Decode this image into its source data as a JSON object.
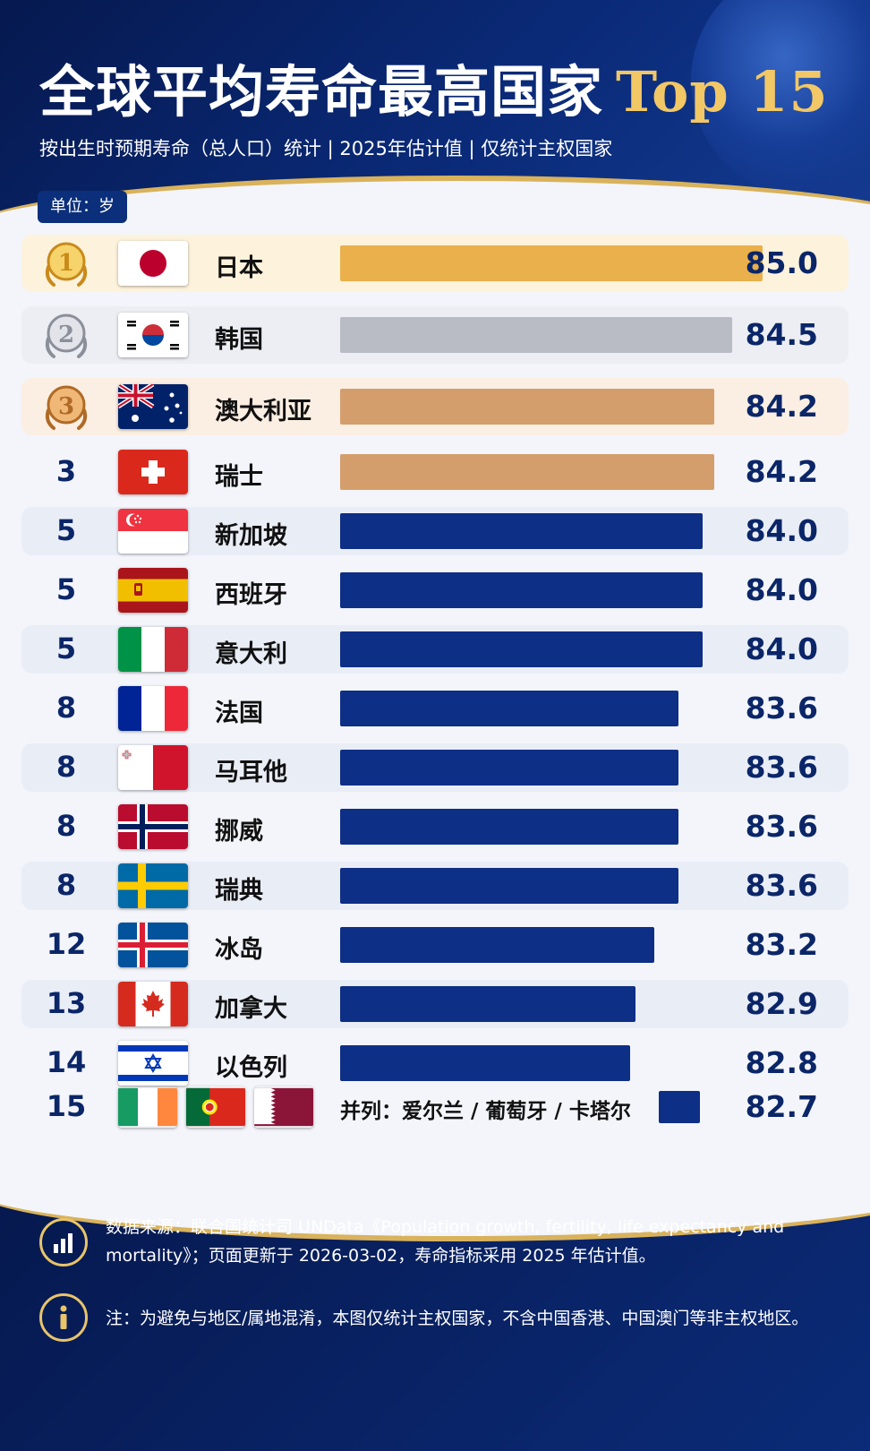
{
  "header": {
    "title": "全球平均寿命最高国家",
    "title_highlight": "Top 15",
    "subtitle": "按出生时预期寿命（总人口）统计 | 2025年估计值 | 仅统计主权国家"
  },
  "unit_label": "单位：岁",
  "chart_data": {
    "type": "bar",
    "orientation": "horizontal",
    "title": "全球平均寿命最高国家 Top 15",
    "unit": "岁",
    "rows": [
      {
        "rank": "1",
        "country": "日本",
        "value": 85.0,
        "value_text": "85.0",
        "medal": "gold",
        "flag": "japan"
      },
      {
        "rank": "2",
        "country": "韩国",
        "value": 84.5,
        "value_text": "84.5",
        "medal": "silver",
        "flag": "south-korea"
      },
      {
        "rank": "3",
        "country": "澳大利亚",
        "value": 84.2,
        "value_text": "84.2",
        "medal": "bronze",
        "flag": "australia"
      },
      {
        "rank": "3",
        "country": "瑞士",
        "value": 84.2,
        "value_text": "84.2",
        "medal": "",
        "flag": "switzerland"
      },
      {
        "rank": "5",
        "country": "新加坡",
        "value": 84.0,
        "value_text": "84.0",
        "medal": "",
        "flag": "singapore"
      },
      {
        "rank": "5",
        "country": "西班牙",
        "value": 84.0,
        "value_text": "84.0",
        "medal": "",
        "flag": "spain"
      },
      {
        "rank": "5",
        "country": "意大利",
        "value": 84.0,
        "value_text": "84.0",
        "medal": "",
        "flag": "italy"
      },
      {
        "rank": "8",
        "country": "法国",
        "value": 83.6,
        "value_text": "83.6",
        "medal": "",
        "flag": "france"
      },
      {
        "rank": "8",
        "country": "马耳他",
        "value": 83.6,
        "value_text": "83.6",
        "medal": "",
        "flag": "malta"
      },
      {
        "rank": "8",
        "country": "挪威",
        "value": 83.6,
        "value_text": "83.6",
        "medal": "",
        "flag": "norway"
      },
      {
        "rank": "8",
        "country": "瑞典",
        "value": 83.6,
        "value_text": "83.6",
        "medal": "",
        "flag": "sweden"
      },
      {
        "rank": "12",
        "country": "冰岛",
        "value": 83.2,
        "value_text": "83.2",
        "medal": "",
        "flag": "iceland"
      },
      {
        "rank": "13",
        "country": "加拿大",
        "value": 82.9,
        "value_text": "82.9",
        "medal": "",
        "flag": "canada"
      },
      {
        "rank": "14",
        "country": "以色列",
        "value": 82.8,
        "value_text": "82.8",
        "medal": "",
        "flag": "israel"
      }
    ],
    "tie_row": {
      "rank": "15",
      "label": "并列：爱尔兰 / 葡萄牙 / 卡塔尔",
      "value": 82.7,
      "value_text": "82.7",
      "flags": [
        "ireland",
        "portugal",
        "qatar"
      ]
    },
    "colors": {
      "gold": "#e9b04c",
      "silver": "#b9bcc4",
      "bronze": "#d49e6c",
      "default": "#0e2f86"
    }
  },
  "footer": {
    "source_text": "数据来源：联合国统计司 UNData《Population growth, fertility, life expectancy and mortality》；页面更新于 2026-03-02，寿命指标采用 2025 年估计值。",
    "note_text": "注：为避免与地区/属地混淆，本图仅统计主权国家，不含中国香港、中国澳门等非主权地区。",
    "source_icon": "bar-chart-icon",
    "note_icon": "info-icon"
  }
}
